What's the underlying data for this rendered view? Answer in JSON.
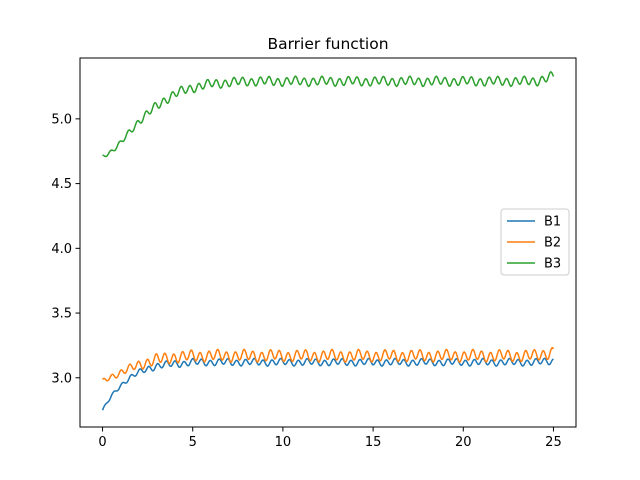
{
  "chart_data": {
    "type": "line",
    "title": "Barrier function",
    "xlabel": "",
    "ylabel": "",
    "xlim": [
      -1.25,
      26.25
    ],
    "ylim": [
      2.62,
      5.47
    ],
    "xticks": [
      0,
      5,
      10,
      15,
      20,
      25
    ],
    "yticks": [
      3.0,
      3.5,
      4.0,
      4.5,
      5.0
    ],
    "ytick_labels": [
      "3.0",
      "3.5",
      "4.0",
      "4.5",
      "5.0"
    ],
    "grid": false,
    "legend_position": "center-right",
    "series": [
      {
        "name": "B1",
        "color": "#1f77b4",
        "x": [
          0,
          0.5,
          1,
          1.5,
          2,
          2.5,
          3,
          3.5,
          4,
          4.5,
          5,
          6,
          7,
          8,
          9,
          10,
          12,
          14,
          16,
          18,
          20,
          22,
          24,
          25
        ],
        "y": [
          2.75,
          2.86,
          2.94,
          3.0,
          3.04,
          3.07,
          3.09,
          3.1,
          3.11,
          3.11,
          3.12,
          3.12,
          3.12,
          3.12,
          3.12,
          3.12,
          3.12,
          3.12,
          3.12,
          3.12,
          3.12,
          3.12,
          3.12,
          3.13
        ],
        "oscillation_amplitude": 0.03
      },
      {
        "name": "B2",
        "color": "#ff7f0e",
        "x": [
          0,
          0.5,
          1,
          1.5,
          2,
          2.5,
          3,
          3.5,
          4,
          4.5,
          5,
          6,
          7,
          8,
          9,
          10,
          12,
          14,
          16,
          18,
          20,
          22,
          24,
          25
        ],
        "y": [
          2.97,
          3.01,
          3.04,
          3.07,
          3.1,
          3.12,
          3.14,
          3.15,
          3.16,
          3.16,
          3.17,
          3.17,
          3.17,
          3.17,
          3.17,
          3.17,
          3.17,
          3.17,
          3.17,
          3.17,
          3.17,
          3.17,
          3.17,
          3.2
        ],
        "oscillation_amplitude": 0.05
      },
      {
        "name": "B3",
        "color": "#2ca02c",
        "x": [
          0,
          0.5,
          1,
          1.5,
          2,
          2.5,
          3,
          3.5,
          4,
          4.5,
          5,
          6,
          7,
          8,
          9,
          10,
          12,
          14,
          16,
          18,
          20,
          22,
          24,
          25
        ],
        "y": [
          4.71,
          4.75,
          4.81,
          4.9,
          4.98,
          5.04,
          5.1,
          5.15,
          5.19,
          5.22,
          5.24,
          5.27,
          5.28,
          5.29,
          5.29,
          5.29,
          5.29,
          5.29,
          5.29,
          5.29,
          5.29,
          5.29,
          5.29,
          5.33
        ],
        "oscillation_amplitude": 0.04
      }
    ]
  }
}
